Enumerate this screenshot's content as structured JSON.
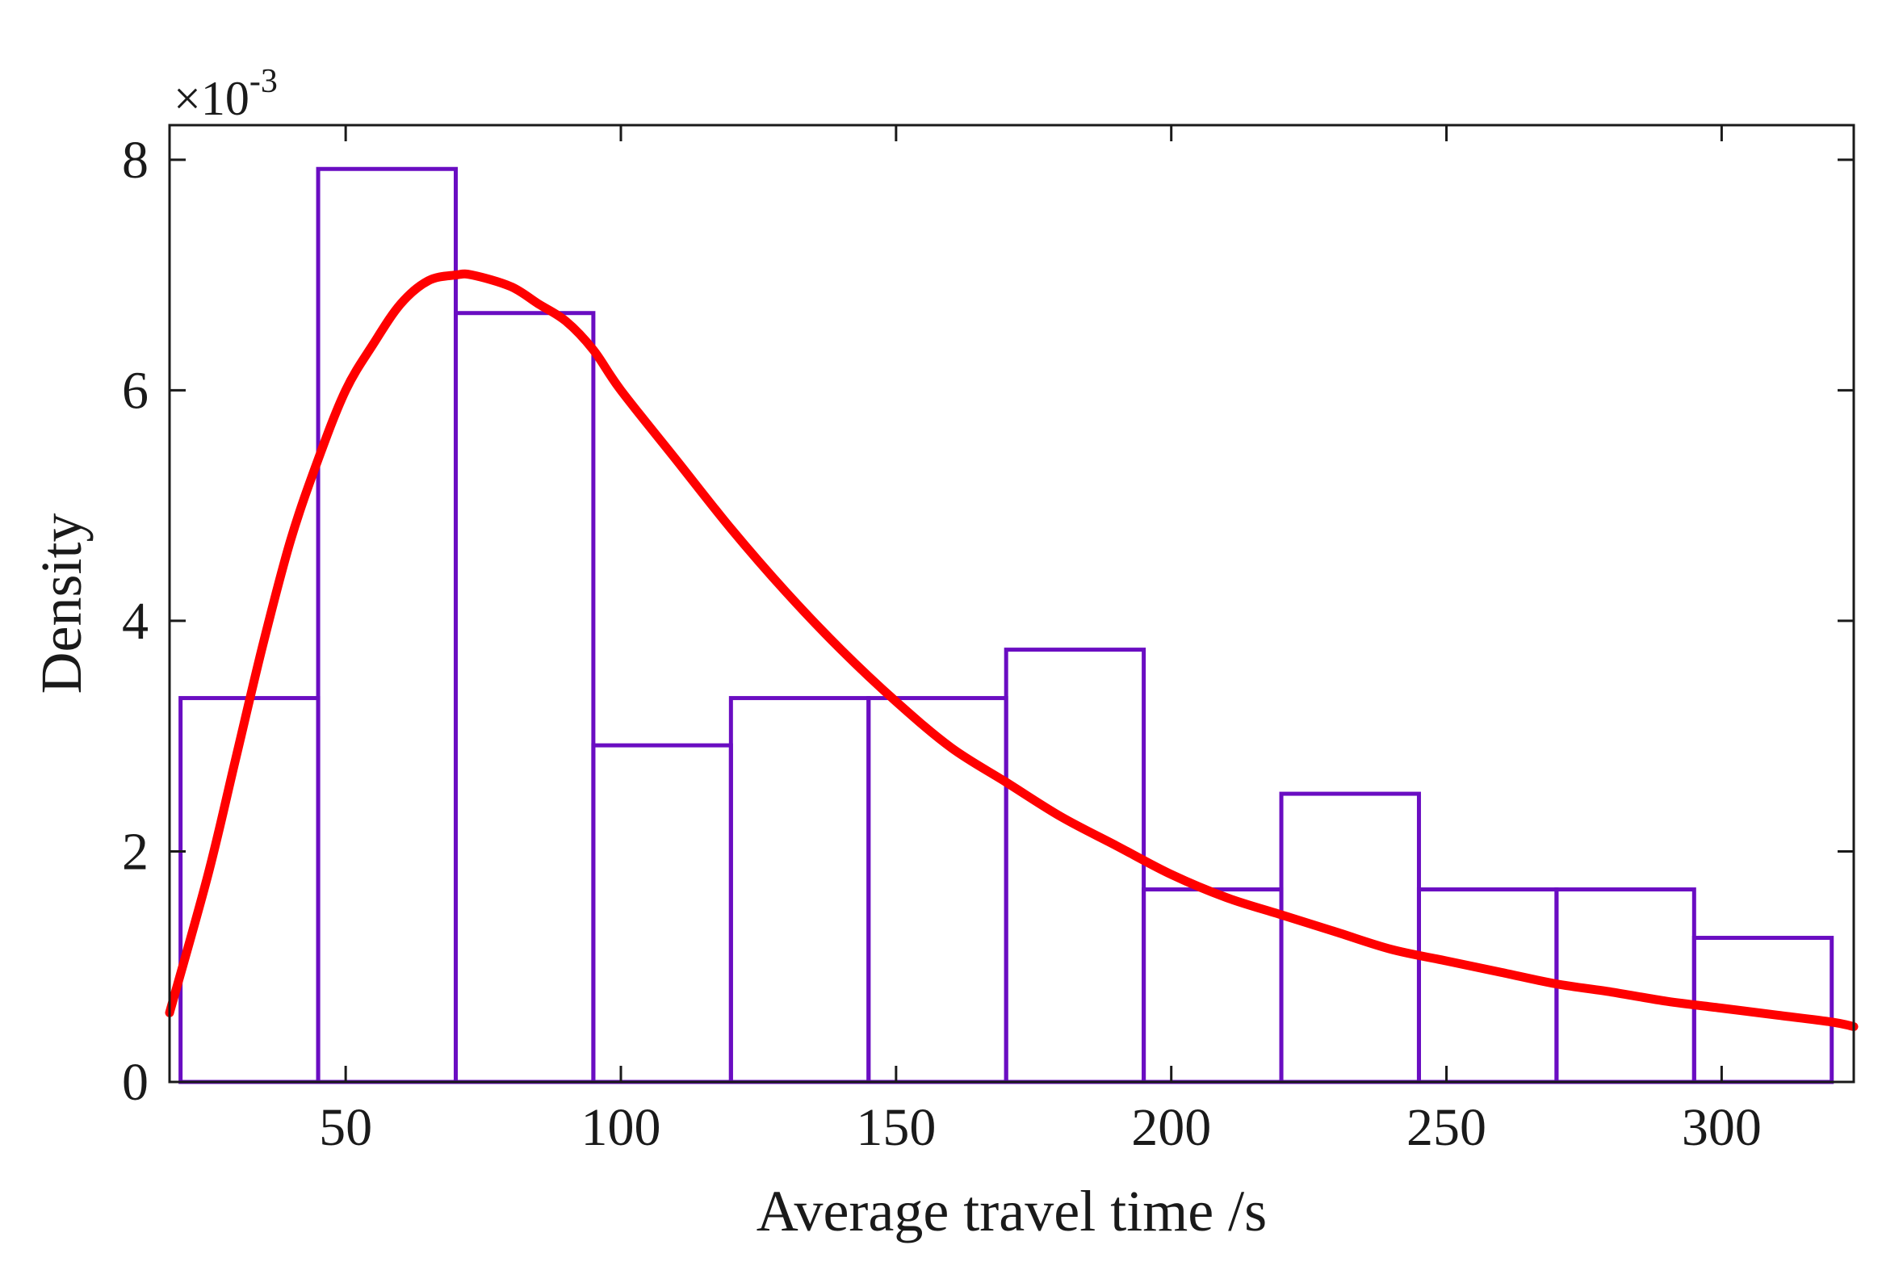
{
  "chart_data": {
    "type": "bar",
    "subtype": "histogram-with-density-fit",
    "xlabel": "Average travel time /s",
    "ylabel": "Density",
    "y_multiplier": {
      "prefix": "×10",
      "exponent": "-3"
    },
    "xlim": [
      18,
      324
    ],
    "ylim": [
      0,
      8.3
    ],
    "xticks": [
      50,
      100,
      150,
      200,
      250,
      300
    ],
    "yticks": [
      0,
      2,
      4,
      6,
      8
    ],
    "xtick_labels": [
      "50",
      "100",
      "150",
      "200",
      "250",
      "300"
    ],
    "ytick_labels": [
      "0",
      "2",
      "4",
      "6",
      "8"
    ],
    "bins": [
      {
        "x0": 20,
        "x1": 45,
        "value": 3.33
      },
      {
        "x0": 45,
        "x1": 70,
        "value": 7.92
      },
      {
        "x0": 70,
        "x1": 95,
        "value": 6.67
      },
      {
        "x0": 95,
        "x1": 120,
        "value": 2.92
      },
      {
        "x0": 120,
        "x1": 145,
        "value": 3.33
      },
      {
        "x0": 145,
        "x1": 170,
        "value": 3.33
      },
      {
        "x0": 170,
        "x1": 195,
        "value": 3.75
      },
      {
        "x0": 195,
        "x1": 220,
        "value": 1.67
      },
      {
        "x0": 220,
        "x1": 245,
        "value": 2.5
      },
      {
        "x0": 245,
        "x1": 270,
        "value": 1.67
      },
      {
        "x0": 270,
        "x1": 295,
        "value": 1.67
      },
      {
        "x0": 295,
        "x1": 320,
        "value": 1.25
      }
    ],
    "fit_curve": {
      "x": [
        18,
        25,
        30,
        35,
        40,
        45,
        50,
        55,
        60,
        65,
        70,
        73,
        80,
        85,
        90,
        95,
        100,
        110,
        120,
        130,
        140,
        150,
        160,
        170,
        180,
        190,
        200,
        210,
        220,
        230,
        240,
        250,
        260,
        270,
        280,
        290,
        300,
        310,
        320,
        324
      ],
      "y": [
        0.6,
        1.8,
        2.8,
        3.8,
        4.7,
        5.4,
        6.0,
        6.4,
        6.75,
        6.95,
        7.0,
        7.0,
        6.9,
        6.75,
        6.6,
        6.35,
        6.0,
        5.4,
        4.8,
        4.25,
        3.75,
        3.3,
        2.9,
        2.6,
        2.3,
        2.05,
        1.8,
        1.6,
        1.45,
        1.3,
        1.15,
        1.05,
        0.95,
        0.85,
        0.78,
        0.7,
        0.64,
        0.58,
        0.52,
        0.48
      ]
    },
    "colors": {
      "bar_edge": "#6a0dc2",
      "curve": "#ff0000",
      "axis": "#1a1a1a"
    },
    "grid": false
  }
}
